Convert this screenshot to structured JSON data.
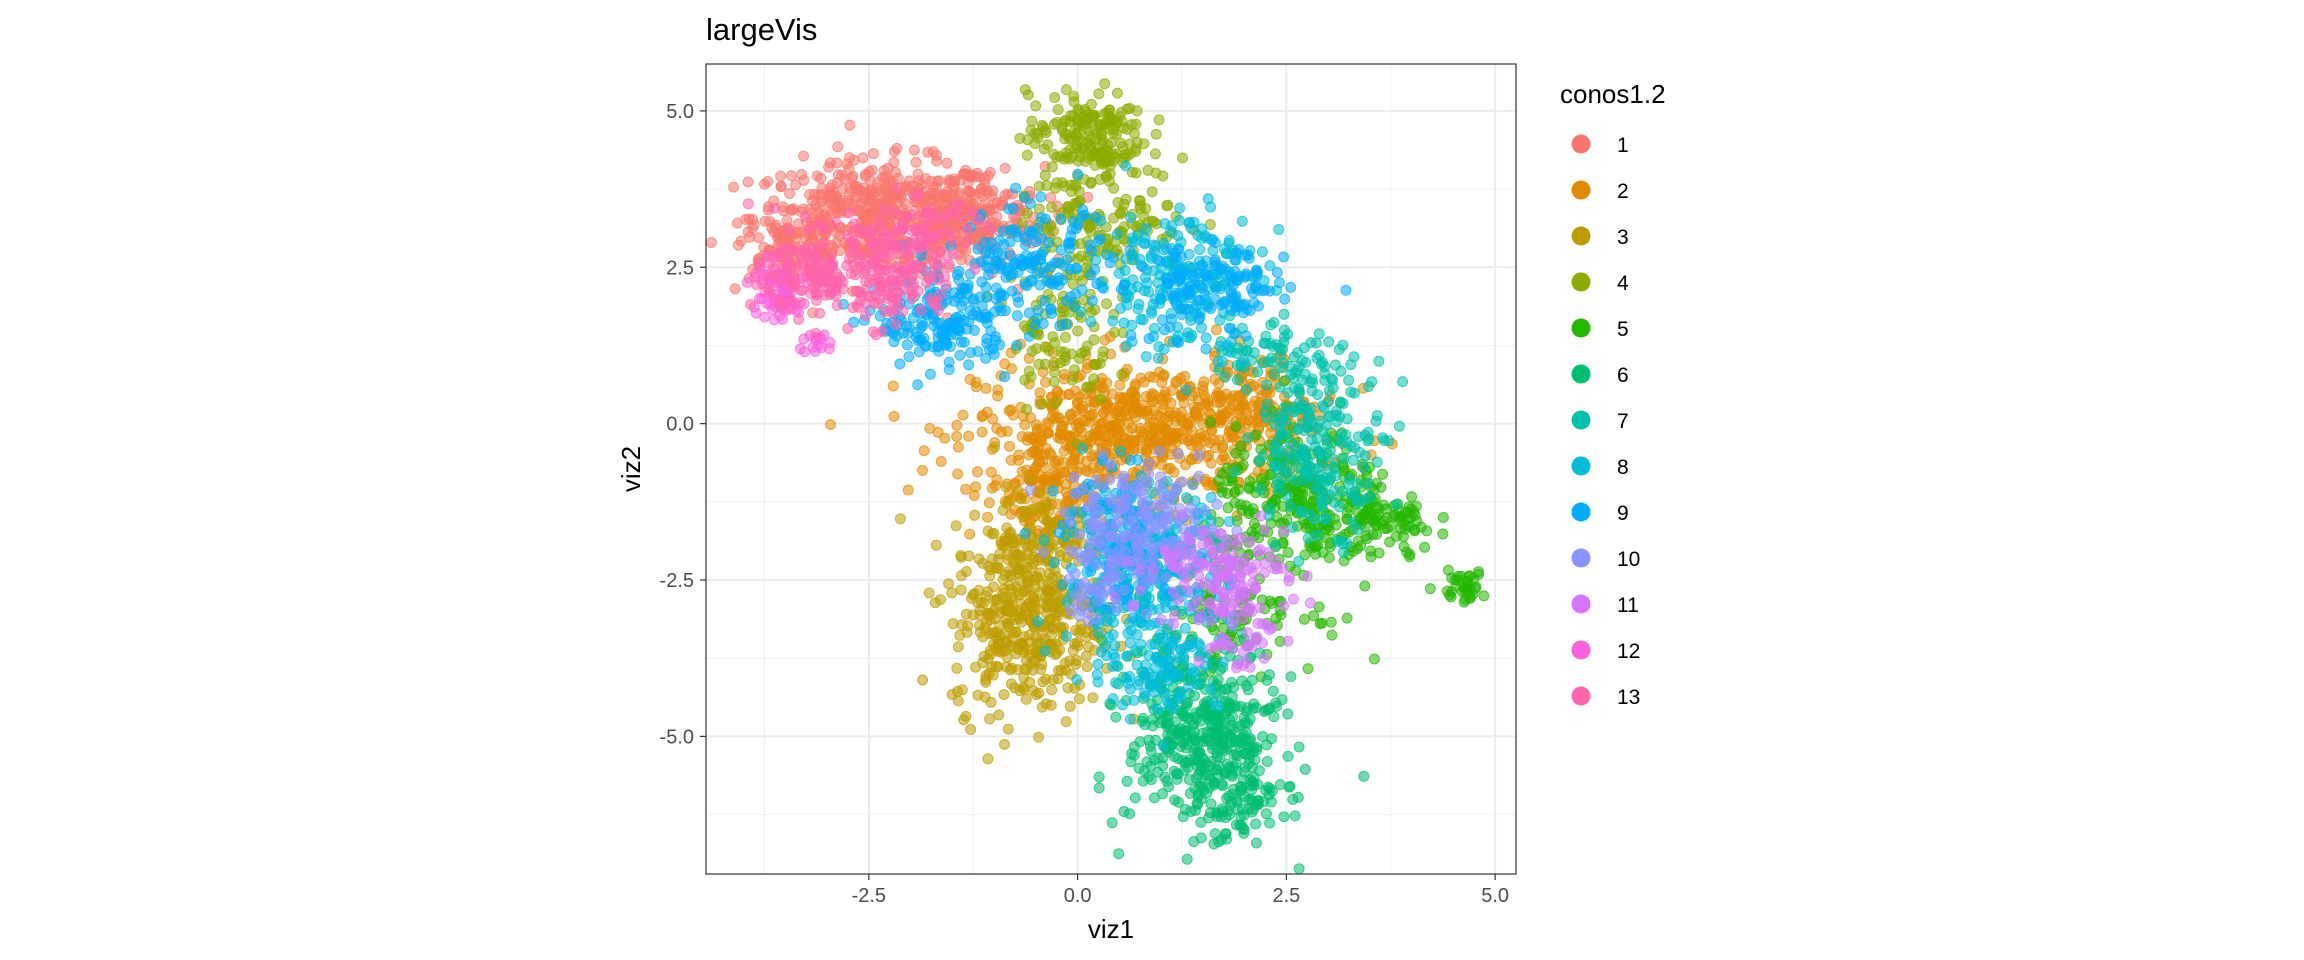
{
  "chart_data": {
    "type": "scatter",
    "title": "largeVis",
    "xlabel": "viz1",
    "ylabel": "viz2",
    "xlim": [
      -4.45,
      5.25
    ],
    "ylim": [
      -7.2,
      5.75
    ],
    "x_ticks": [
      -2.5,
      0.0,
      2.5,
      5.0
    ],
    "x_tick_labels": [
      "-2.5",
      "0.0",
      "2.5",
      "5.0"
    ],
    "y_ticks": [
      -5.0,
      -2.5,
      0.0,
      2.5,
      5.0
    ],
    "y_tick_labels": [
      "-5.0",
      "-2.5",
      "0.0",
      "2.5",
      "5.0"
    ],
    "grid": true,
    "legend_title": "conos1.2",
    "legend_position": "right",
    "point_alpha": 0.55,
    "series": [
      {
        "name": "1",
        "color": "#F8766D",
        "clusters": [
          [
            -2.4,
            3.3,
            0.75,
            0.45,
            520
          ],
          [
            -1.3,
            3.3,
            0.45,
            0.4,
            200
          ],
          [
            -3.5,
            2.8,
            0.3,
            0.25,
            60
          ]
        ]
      },
      {
        "name": "2",
        "color": "#E18A00",
        "clusters": [
          [
            0.8,
            -0.1,
            1.0,
            0.55,
            650
          ],
          [
            -0.4,
            -1.0,
            0.35,
            0.5,
            150
          ],
          [
            2.0,
            0.3,
            0.4,
            0.4,
            90
          ]
        ]
      },
      {
        "name": "3",
        "color": "#BE9C00",
        "clusters": [
          [
            -0.6,
            -3.1,
            0.45,
            0.75,
            420
          ],
          [
            -0.4,
            -1.8,
            0.3,
            0.4,
            90
          ]
        ]
      },
      {
        "name": "4",
        "color": "#8CAB00",
        "clusters": [
          [
            0.1,
            4.6,
            0.35,
            0.35,
            180
          ],
          [
            0.3,
            3.3,
            0.5,
            0.45,
            140
          ],
          [
            -0.2,
            1.5,
            0.3,
            0.6,
            100
          ]
        ]
      },
      {
        "name": "5",
        "color": "#24B700",
        "clusters": [
          [
            2.7,
            -1.3,
            0.55,
            0.6,
            280
          ],
          [
            3.7,
            -1.6,
            0.3,
            0.25,
            70
          ],
          [
            4.6,
            -2.6,
            0.15,
            0.12,
            35
          ],
          [
            1.8,
            -2.9,
            0.55,
            0.5,
            110
          ]
        ]
      },
      {
        "name": "6",
        "color": "#00BE70",
        "clusters": [
          [
            1.5,
            -5.0,
            0.45,
            0.7,
            420
          ],
          [
            2.0,
            -6.1,
            0.25,
            0.25,
            70
          ]
        ]
      },
      {
        "name": "7",
        "color": "#00C1AB",
        "clusters": [
          [
            2.9,
            -0.3,
            0.4,
            0.7,
            230
          ],
          [
            2.3,
            1.2,
            0.35,
            0.3,
            60
          ]
        ]
      },
      {
        "name": "8",
        "color": "#00BBDA",
        "clusters": [
          [
            1.2,
            2.3,
            0.5,
            0.6,
            220
          ],
          [
            0.8,
            -2.4,
            0.5,
            0.7,
            280
          ],
          [
            1.0,
            -3.8,
            0.35,
            0.4,
            100
          ]
        ]
      },
      {
        "name": "9",
        "color": "#00ACFC",
        "clusters": [
          [
            -1.6,
            1.6,
            0.4,
            0.35,
            170
          ],
          [
            -0.6,
            2.5,
            0.5,
            0.45,
            170
          ],
          [
            1.6,
            2.1,
            0.45,
            0.4,
            120
          ],
          [
            0.6,
            -1.9,
            0.4,
            0.55,
            140
          ]
        ]
      },
      {
        "name": "10",
        "color": "#8B93FF",
        "clusters": [
          [
            0.8,
            -1.6,
            0.45,
            0.45,
            170
          ],
          [
            0.3,
            -2.5,
            0.3,
            0.35,
            50
          ]
        ]
      },
      {
        "name": "11",
        "color": "#D575FE",
        "clusters": [
          [
            1.7,
            -2.4,
            0.4,
            0.4,
            150
          ],
          [
            1.9,
            -3.4,
            0.25,
            0.3,
            30
          ]
        ]
      },
      {
        "name": "12",
        "color": "#F962DD",
        "clusters": [
          [
            -3.6,
            2.1,
            0.18,
            0.25,
            80
          ],
          [
            -3.1,
            1.3,
            0.12,
            0.1,
            15
          ]
        ]
      },
      {
        "name": "13",
        "color": "#FF65AC",
        "clusters": [
          [
            -3.0,
            2.4,
            0.4,
            0.35,
            160
          ],
          [
            -2.2,
            2.2,
            0.35,
            0.3,
            90
          ],
          [
            -2.0,
            3.0,
            0.4,
            0.3,
            80
          ]
        ]
      }
    ]
  }
}
